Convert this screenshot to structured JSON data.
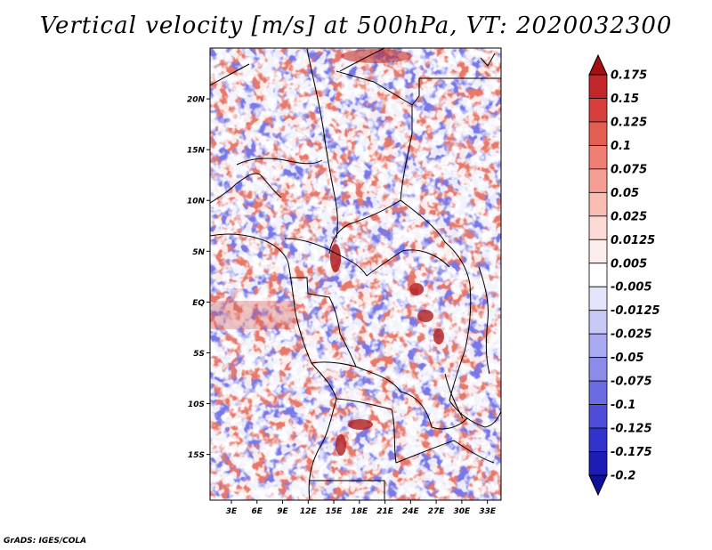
{
  "title": "Vertical velocity [m/s] at 500hPa, VT: 2020032300",
  "footer": "GrADS: IGES/COLA",
  "lat_labels": [
    "20N",
    "15N",
    "10N",
    "5N",
    "EQ",
    "5S",
    "10S",
    "15S"
  ],
  "lon_labels": [
    "3E",
    "6E",
    "9E",
    "12E",
    "15E",
    "18E",
    "21E",
    "24E",
    "27E",
    "30E",
    "33E"
  ],
  "lat_values": [
    20,
    15,
    10,
    5,
    0,
    -5,
    -10,
    -15
  ],
  "lon_values": [
    3,
    6,
    9,
    12,
    15,
    18,
    21,
    24,
    27,
    30,
    33
  ],
  "extent": {
    "lon_min": 0.5,
    "lon_max": 34.6,
    "lat_min": -19.5,
    "lat_max": 25
  },
  "colorbar": {
    "labels": [
      "0.175",
      "0.15",
      "0.125",
      "0.1",
      "0.075",
      "0.05",
      "0.025",
      "0.0125",
      "0.005",
      "-0.005",
      "-0.0125",
      "-0.025",
      "-0.05",
      "-0.075",
      "-0.1",
      "-0.125",
      "-0.175",
      "-0.2"
    ],
    "colors": [
      "#a50f15",
      "#c0262a",
      "#d6403c",
      "#e35f52",
      "#ee7f72",
      "#f59f94",
      "#f9bdb4",
      "#fcdad5",
      "#fdeeee",
      "#ffffff",
      "#e4e4fb",
      "#c9c9f7",
      "#aaaaf1",
      "#8b8bea",
      "#6c6ce2",
      "#4d4dd8",
      "#3232cc",
      "#1c1cb4",
      "#1010a0"
    ]
  },
  "map_colors": {
    "blue": "#7070e6",
    "red": "#e86a5c",
    "neutral": "#ffffff",
    "border": "#000000"
  },
  "icons": [
    "colorbar-top-arrow-icon",
    "colorbar-bottom-arrow-icon"
  ]
}
